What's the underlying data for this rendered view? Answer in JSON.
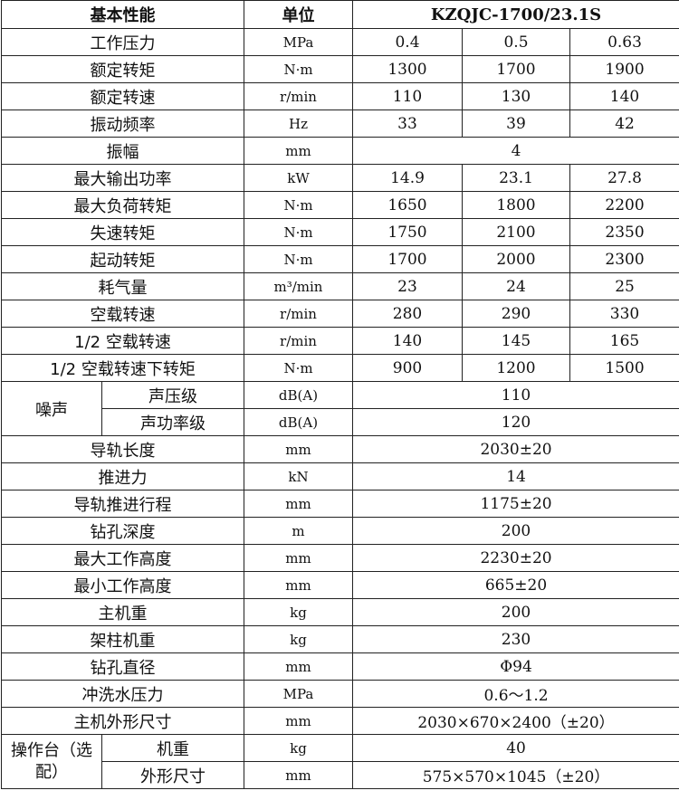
{
  "header": {
    "property": "基本性能",
    "unit": "单位",
    "model": "KZQJC-1700/23.1S"
  },
  "rows_three": [
    {
      "label": "工作压力",
      "unit": "MPa",
      "values": [
        "0.4",
        "0.5",
        "0.63"
      ]
    },
    {
      "label": "额定转矩",
      "unit": "N·m",
      "values": [
        "1300",
        "1700",
        "1900"
      ]
    },
    {
      "label": "额定转速",
      "unit": "r/min",
      "values": [
        "110",
        "130",
        "140"
      ]
    },
    {
      "label": "振动频率",
      "unit": "Hz",
      "values": [
        "33",
        "39",
        "42"
      ]
    }
  ],
  "amplitude": {
    "label": "振幅",
    "unit": "mm",
    "value": "4"
  },
  "rows_three_b": [
    {
      "label": "最大输出功率",
      "unit": "kW",
      "values": [
        "14.9",
        "23.1",
        "27.8"
      ]
    },
    {
      "label": "最大负荷转矩",
      "unit": "N·m",
      "values": [
        "1650",
        "1800",
        "2200"
      ]
    },
    {
      "label": "失速转矩",
      "unit": "N·m",
      "values": [
        "1750",
        "2100",
        "2350"
      ]
    },
    {
      "label": "起动转矩",
      "unit": "N·m",
      "values": [
        "1700",
        "2000",
        "2300"
      ]
    },
    {
      "label": "耗气量",
      "unit": "m³/min",
      "values": [
        "23",
        "24",
        "25"
      ]
    },
    {
      "label": "空载转速",
      "unit": "r/min",
      "values": [
        "280",
        "290",
        "330"
      ]
    },
    {
      "label": "1/2 空载转速",
      "unit": "r/min",
      "values": [
        "140",
        "145",
        "165"
      ]
    },
    {
      "label": "1/2 空载转速下转矩",
      "unit": "N·m",
      "values": [
        "900",
        "1200",
        "1500"
      ]
    }
  ],
  "noise": {
    "group": "噪声",
    "items": [
      {
        "label": "声压级",
        "unit": "dB(A)",
        "value": "110"
      },
      {
        "label": "声功率级",
        "unit": "dB(A)",
        "value": "120"
      }
    ]
  },
  "rows_single": [
    {
      "label": "导轨长度",
      "unit": "mm",
      "value": "2030±20"
    },
    {
      "label": "推进力",
      "unit": "kN",
      "value": "14"
    },
    {
      "label": "导轨推进行程",
      "unit": "mm",
      "value": "1175±20"
    },
    {
      "label": "钻孔深度",
      "unit": "m",
      "value": "200"
    },
    {
      "label": "最大工作高度",
      "unit": "mm",
      "value": "2230±20"
    },
    {
      "label": "最小工作高度",
      "unit": "mm",
      "value": "665±20"
    },
    {
      "label": "主机重",
      "unit": "kg",
      "value": "200"
    },
    {
      "label": "架柱机重",
      "unit": "kg",
      "value": "230"
    },
    {
      "label": "钻孔直径",
      "unit": "mm",
      "value": "Φ94"
    },
    {
      "label": "冲洗水压力",
      "unit": "MPa",
      "value": "0.6～1.2"
    },
    {
      "label": "主机外形尺寸",
      "unit": "mm",
      "value": "2030×670×2400（±20）"
    }
  ],
  "console": {
    "group": "操作台（选配）",
    "items": [
      {
        "label": "机重",
        "unit": "kg",
        "value": "40"
      },
      {
        "label": "外形尺寸",
        "unit": "mm",
        "value": "575×570×1045（±20）"
      }
    ]
  }
}
